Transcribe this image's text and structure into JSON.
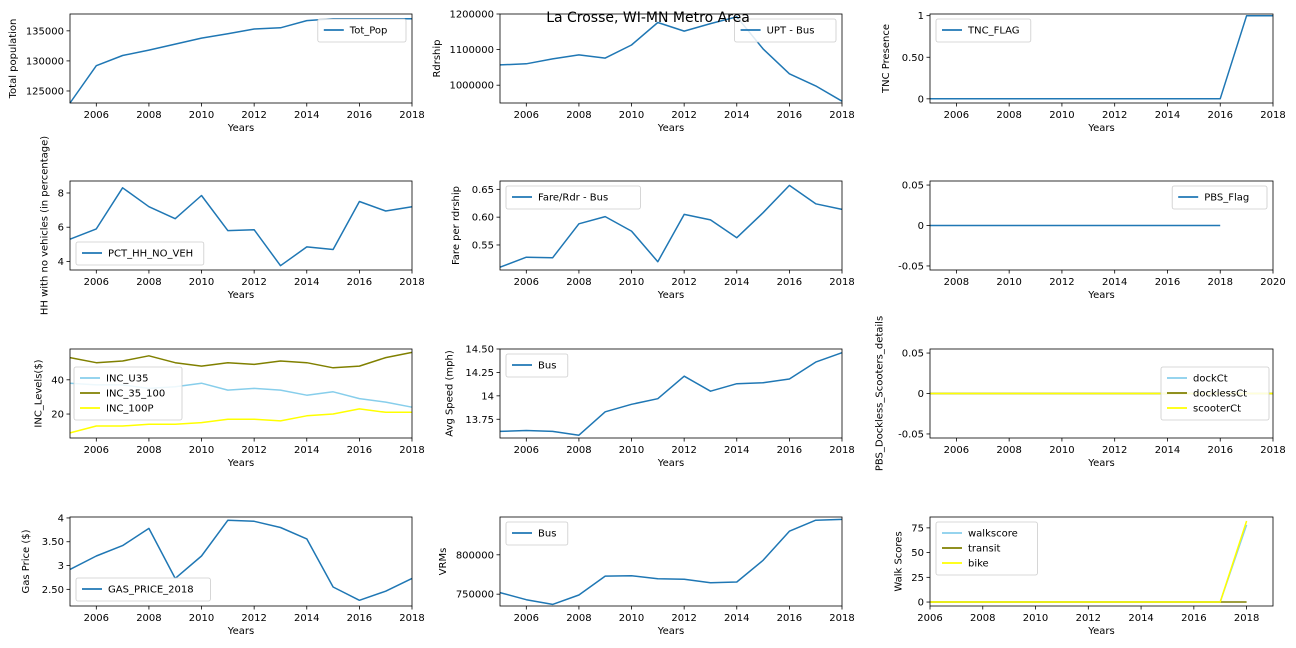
{
  "figure": {
    "suptitle": "La Crosse, WI-MN Metro Area"
  },
  "chart_data": [
    {
      "id": "p0",
      "type": "line",
      "xlabel": "Years",
      "ylabel": "Total population",
      "xlim": [
        2005,
        2018
      ],
      "xticks": [
        2006,
        2008,
        2010,
        2012,
        2014,
        2016,
        2018
      ],
      "ylim": [
        123000,
        137800
      ],
      "yticks": [
        125000,
        130000,
        135000
      ],
      "legend_loc": "upper-right",
      "series": [
        {
          "name": "Tot_Pop",
          "color": "#1f77b4",
          "x": [
            2005,
            2006,
            2007,
            2008,
            2009,
            2010,
            2011,
            2012,
            2013,
            2014,
            2015,
            2016,
            2017,
            2018
          ],
          "y": [
            123000,
            129200,
            130900,
            131800,
            132800,
            133800,
            134500,
            135300,
            135500,
            136700,
            137000,
            137000,
            137000,
            137000
          ]
        }
      ]
    },
    {
      "id": "p1",
      "type": "line",
      "xlabel": "Years",
      "ylabel": "Rdrship",
      "xlim": [
        2005,
        2018
      ],
      "xticks": [
        2006,
        2008,
        2010,
        2012,
        2014,
        2016,
        2018
      ],
      "ylim": [
        950000,
        1200000
      ],
      "yticks": [
        1000000,
        1100000,
        1200000
      ],
      "legend_loc": "upper-right",
      "series": [
        {
          "name": "UPT - Bus",
          "color": "#1f77b4",
          "x": [
            2005,
            2006,
            2007,
            2008,
            2009,
            2010,
            2011,
            2012,
            2013,
            2014,
            2015,
            2016,
            2017,
            2018
          ],
          "y": [
            1057000,
            1060000,
            1074000,
            1085000,
            1076000,
            1113000,
            1176000,
            1152000,
            1173000,
            1192000,
            1102000,
            1032000,
            998000,
            955000
          ]
        }
      ]
    },
    {
      "id": "p2",
      "type": "line",
      "xlabel": "Years",
      "ylabel": "TNC Presence",
      "xlim": [
        2005,
        2018
      ],
      "xticks": [
        2006,
        2008,
        2010,
        2012,
        2014,
        2016,
        2018
      ],
      "ylim": [
        -0.05,
        1.02
      ],
      "yticks": [
        0.0,
        0.5,
        1.0
      ],
      "legend_loc": "upper-left",
      "series": [
        {
          "name": "TNC_FLAG",
          "color": "#1f77b4",
          "x": [
            2005,
            2006,
            2007,
            2008,
            2009,
            2010,
            2011,
            2012,
            2013,
            2014,
            2015,
            2016,
            2017,
            2018
          ],
          "y": [
            0,
            0,
            0,
            0,
            0,
            0,
            0,
            0,
            0,
            0,
            0,
            0,
            1,
            1
          ]
        }
      ]
    },
    {
      "id": "p3",
      "type": "line",
      "xlabel": "Years",
      "ylabel": "HH with no vehicles (in percentage)",
      "xlim": [
        2005,
        2018
      ],
      "xticks": [
        2006,
        2008,
        2010,
        2012,
        2014,
        2016,
        2018
      ],
      "ylim": [
        3.5,
        8.7
      ],
      "yticks": [
        4,
        6,
        8
      ],
      "legend_loc": "lower-left",
      "series": [
        {
          "name": "PCT_HH_NO_VEH",
          "color": "#1f77b4",
          "x": [
            2005,
            2006,
            2007,
            2008,
            2009,
            2010,
            2011,
            2012,
            2013,
            2014,
            2015,
            2016,
            2017,
            2018
          ],
          "y": [
            5.3,
            5.9,
            8.3,
            7.2,
            6.5,
            7.85,
            5.8,
            5.85,
            3.75,
            4.85,
            4.7,
            7.5,
            6.95,
            7.2
          ]
        }
      ]
    },
    {
      "id": "p4",
      "type": "line",
      "xlabel": "Years",
      "ylabel": "Fare per rdrship",
      "xlim": [
        2005,
        2018
      ],
      "xticks": [
        2006,
        2008,
        2010,
        2012,
        2014,
        2016,
        2018
      ],
      "ylim": [
        0.505,
        0.665
      ],
      "yticks": [
        0.55,
        0.6,
        0.65
      ],
      "legend_loc": "upper-left",
      "series": [
        {
          "name": "Fare/Rdr - Bus",
          "color": "#1f77b4",
          "x": [
            2005,
            2006,
            2007,
            2008,
            2009,
            2010,
            2011,
            2012,
            2013,
            2014,
            2015,
            2016,
            2017,
            2018
          ],
          "y": [
            0.51,
            0.528,
            0.527,
            0.588,
            0.601,
            0.575,
            0.52,
            0.605,
            0.595,
            0.563,
            0.608,
            0.657,
            0.624,
            0.614
          ]
        }
      ]
    },
    {
      "id": "p5",
      "type": "line",
      "xlabel": "Years",
      "ylabel": "",
      "xlim": [
        2007,
        2020
      ],
      "xticks": [
        2008,
        2010,
        2012,
        2014,
        2016,
        2018,
        2020
      ],
      "ylim": [
        -0.055,
        0.055
      ],
      "yticks": [
        -0.05,
        0.0,
        0.05
      ],
      "legend_loc": "upper-right",
      "series": [
        {
          "name": "PBS_Flag",
          "color": "#1f77b4",
          "x": [
            2007,
            2018
          ],
          "y": [
            0,
            0
          ]
        }
      ]
    },
    {
      "id": "p6",
      "type": "line",
      "xlabel": "Years",
      "ylabel": "INC_Levels($)",
      "xlim": [
        2005,
        2018
      ],
      "xticks": [
        2006,
        2008,
        2010,
        2012,
        2014,
        2016,
        2018
      ],
      "ylim": [
        6,
        58
      ],
      "yticks": [
        20,
        40
      ],
      "legend_loc": "center-left",
      "series": [
        {
          "name": "INC_U35",
          "color": "#87ceeb",
          "x": [
            2005,
            2006,
            2007,
            2008,
            2009,
            2010,
            2011,
            2012,
            2013,
            2014,
            2015,
            2016,
            2017,
            2018
          ],
          "y": [
            38,
            37,
            37,
            35,
            36,
            38,
            34,
            35,
            34,
            31,
            33,
            29,
            27,
            24
          ]
        },
        {
          "name": "INC_35_100",
          "color": "#808000",
          "x": [
            2005,
            2006,
            2007,
            2008,
            2009,
            2010,
            2011,
            2012,
            2013,
            2014,
            2015,
            2016,
            2017,
            2018
          ],
          "y": [
            53,
            50,
            51,
            54,
            50,
            48,
            50,
            49,
            51,
            50,
            47,
            48,
            53,
            56
          ]
        },
        {
          "name": "INC_100P",
          "color": "#ffff00",
          "x": [
            2005,
            2006,
            2007,
            2008,
            2009,
            2010,
            2011,
            2012,
            2013,
            2014,
            2015,
            2016,
            2017,
            2018
          ],
          "y": [
            9,
            13,
            13,
            14,
            14,
            15,
            17,
            17,
            16,
            19,
            20,
            23,
            21,
            21
          ]
        }
      ]
    },
    {
      "id": "p7",
      "type": "line",
      "xlabel": "Years",
      "ylabel": "Avg Speed (mph)",
      "xlim": [
        2005,
        2018
      ],
      "xticks": [
        2006,
        2008,
        2010,
        2012,
        2014,
        2016,
        2018
      ],
      "ylim": [
        13.55,
        14.5
      ],
      "yticks": [
        13.75,
        14.0,
        14.25,
        14.5
      ],
      "legend_loc": "upper-left",
      "series": [
        {
          "name": "Bus",
          "color": "#1f77b4",
          "x": [
            2005,
            2006,
            2007,
            2008,
            2009,
            2010,
            2011,
            2012,
            2013,
            2014,
            2015,
            2016,
            2017,
            2018
          ],
          "y": [
            13.62,
            13.63,
            13.62,
            13.58,
            13.83,
            13.91,
            13.97,
            14.21,
            14.05,
            14.13,
            14.14,
            14.18,
            14.36,
            14.46
          ]
        }
      ]
    },
    {
      "id": "p8",
      "type": "line",
      "xlabel": "Years",
      "ylabel": "PBS_Dockless_Scooters_details",
      "xlim": [
        2005,
        2018
      ],
      "xticks": [
        2006,
        2008,
        2010,
        2012,
        2014,
        2016,
        2018
      ],
      "ylim": [
        -0.055,
        0.055
      ],
      "yticks": [
        -0.05,
        0.0,
        0.05
      ],
      "legend_loc": "center-right",
      "series": [
        {
          "name": "dockCt",
          "color": "#87ceeb",
          "x": [
            2005,
            2018
          ],
          "y": [
            0,
            0
          ]
        },
        {
          "name": "docklessCt",
          "color": "#808000",
          "x": [
            2005,
            2018
          ],
          "y": [
            0,
            0
          ]
        },
        {
          "name": "scooterCt",
          "color": "#ffff00",
          "x": [
            2005,
            2018
          ],
          "y": [
            0,
            0
          ]
        }
      ]
    },
    {
      "id": "p9",
      "type": "line",
      "xlabel": "Years",
      "ylabel": "Gas Price ($)",
      "xlim": [
        2005,
        2018
      ],
      "xticks": [
        2006,
        2008,
        2010,
        2012,
        2014,
        2016,
        2018
      ],
      "ylim": [
        2.15,
        4.02
      ],
      "yticks": [
        2.5,
        3.0,
        3.5,
        4.0
      ],
      "legend_loc": "lower-left",
      "series": [
        {
          "name": "GAS_PRICE_2018",
          "color": "#1f77b4",
          "x": [
            2005,
            2006,
            2007,
            2008,
            2009,
            2010,
            2011,
            2012,
            2013,
            2014,
            2015,
            2016,
            2017,
            2018
          ],
          "y": [
            2.92,
            3.2,
            3.42,
            3.78,
            2.73,
            3.2,
            3.95,
            3.93,
            3.8,
            3.56,
            2.55,
            2.27,
            2.46,
            2.73
          ]
        }
      ]
    },
    {
      "id": "p10",
      "type": "line",
      "xlabel": "Years",
      "ylabel": "VRMs",
      "xlim": [
        2005,
        2018
      ],
      "xticks": [
        2006,
        2008,
        2010,
        2012,
        2014,
        2016,
        2018
      ],
      "ylim": [
        735000,
        848000
      ],
      "yticks": [
        750000,
        800000
      ],
      "legend_loc": "upper-left",
      "series": [
        {
          "name": "Bus",
          "color": "#1f77b4",
          "x": [
            2005,
            2006,
            2007,
            2008,
            2009,
            2010,
            2011,
            2012,
            2013,
            2014,
            2015,
            2016,
            2017,
            2018
          ],
          "y": [
            752000,
            743000,
            737000,
            749000,
            773000,
            773500,
            769500,
            769000,
            764500,
            765500,
            793000,
            830000,
            844000,
            845000
          ]
        }
      ]
    },
    {
      "id": "p11",
      "type": "line",
      "xlabel": "Years",
      "ylabel": "Walk Scores",
      "xlim": [
        2006,
        2019
      ],
      "xticks": [
        2006,
        2008,
        2010,
        2012,
        2014,
        2016,
        2018
      ],
      "ylim": [
        -4,
        86
      ],
      "yticks": [
        0,
        25,
        50,
        75
      ],
      "legend_loc": "upper-left",
      "series": [
        {
          "name": "walkscore",
          "color": "#87ceeb",
          "x": [
            2006,
            2017,
            2018
          ],
          "y": [
            0,
            0,
            78
          ]
        },
        {
          "name": "transit",
          "color": "#808000",
          "x": [
            2006,
            2017,
            2018
          ],
          "y": [
            0,
            0,
            0
          ]
        },
        {
          "name": "bike",
          "color": "#ffff00",
          "x": [
            2006,
            2017,
            2018
          ],
          "y": [
            0,
            0,
            82
          ]
        }
      ]
    }
  ]
}
